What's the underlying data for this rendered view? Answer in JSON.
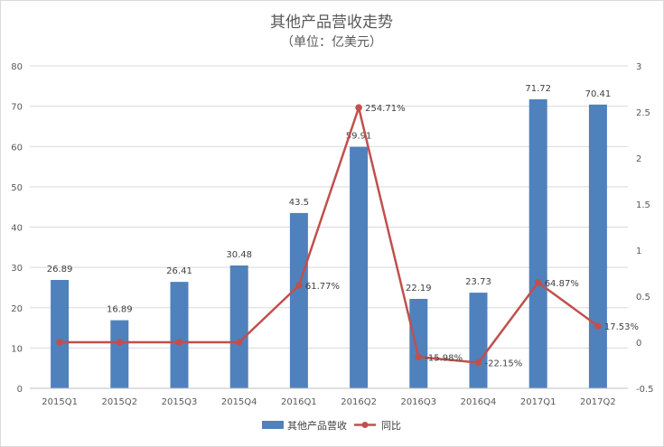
{
  "chart_data": {
    "type": "bar",
    "title": "其他产品营收走势",
    "subtitle": "（单位：亿美元）",
    "categories": [
      "2015Q1",
      "2015Q2",
      "2015Q3",
      "2015Q4",
      "2016Q1",
      "2016Q2",
      "2016Q3",
      "2016Q4",
      "2017Q1",
      "2017Q2"
    ],
    "series": [
      {
        "name": "其他产品营收",
        "type": "bar",
        "axis": "left",
        "values": [
          26.89,
          16.89,
          26.41,
          30.48,
          43.5,
          59.91,
          22.19,
          23.73,
          71.72,
          70.41
        ],
        "labels": [
          "26.89",
          "16.89",
          "26.41",
          "30.48",
          "43.5",
          "59.91",
          "22.19",
          "23.73",
          "71.72",
          "70.41"
        ],
        "color": "#4f81bd"
      },
      {
        "name": "同比",
        "type": "line",
        "axis": "right",
        "values": [
          0,
          0,
          0,
          0,
          0.6177,
          2.5471,
          -0.1598,
          -0.2215,
          0.6487,
          0.1753
        ],
        "labels": [
          "",
          "",
          "",
          "",
          "61.77%",
          "254.71%",
          "-15.98%",
          "-22.15%",
          "64.87%",
          "17.53%"
        ],
        "color": "#c0504d"
      }
    ],
    "y_left": {
      "min": 0,
      "max": 80,
      "ticks": [
        "0",
        "10",
        "20",
        "30",
        "40",
        "50",
        "60",
        "70",
        "80"
      ]
    },
    "y_right": {
      "min": -0.5,
      "max": 3,
      "ticks": [
        "-0.5",
        "0",
        "0.5",
        "1",
        "1.5",
        "2",
        "2.5",
        "3"
      ]
    },
    "grid": true,
    "legend_position": "bottom"
  },
  "colors": {
    "bar": "#4f81bd",
    "line": "#c0504d",
    "grid": "#d9d9d9",
    "text": "#595959"
  }
}
